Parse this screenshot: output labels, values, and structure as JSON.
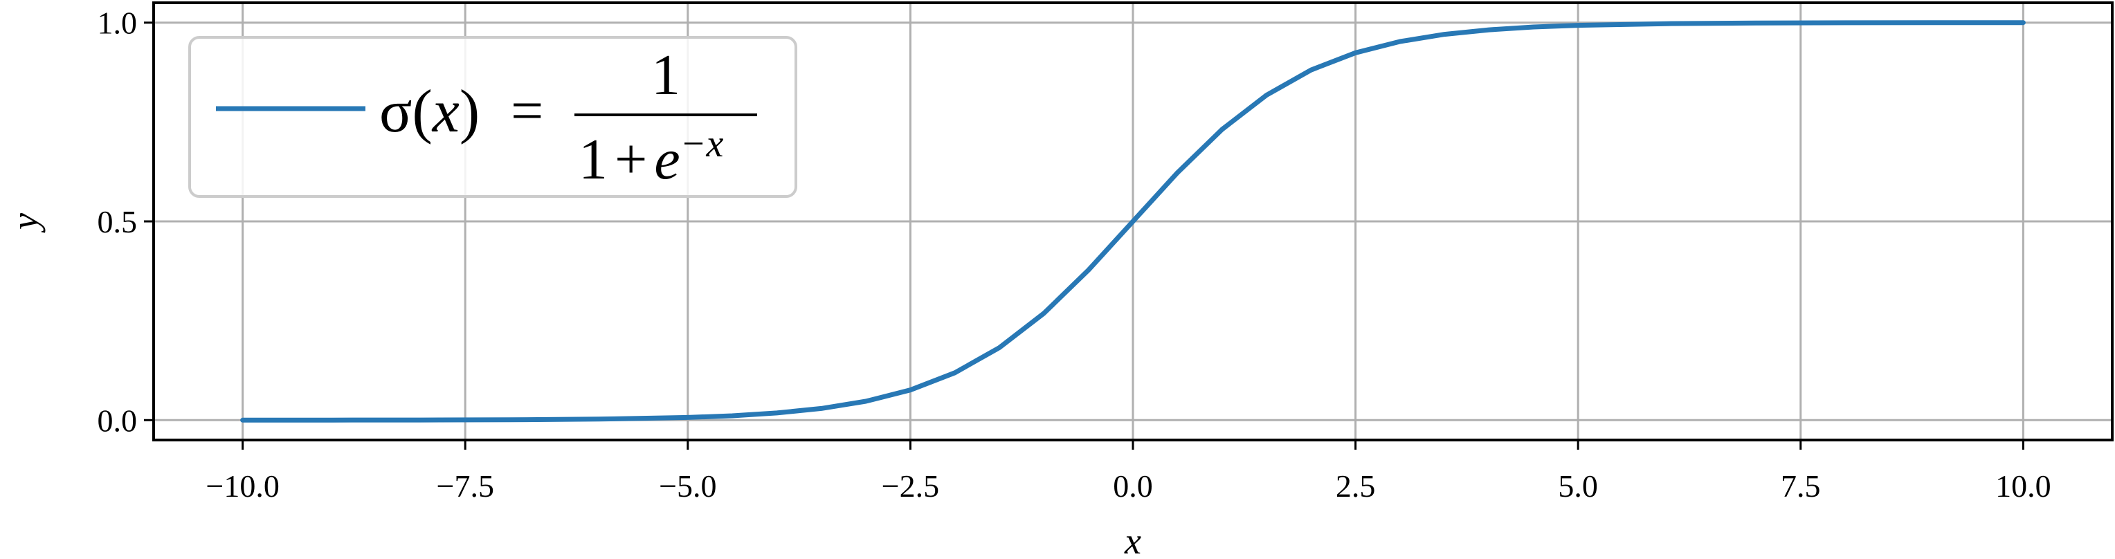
{
  "chart_data": {
    "type": "line",
    "title": "",
    "xlabel": "x",
    "ylabel": "y",
    "xlim": [
      -11.0,
      11.0
    ],
    "ylim": [
      -0.05,
      1.05
    ],
    "x_ticks": [
      -10.0,
      -7.5,
      -5.0,
      -2.5,
      0.0,
      2.5,
      5.0,
      7.5,
      10.0
    ],
    "x_tick_labels": [
      "−10.0",
      "−7.5",
      "−5.0",
      "−2.5",
      "0.0",
      "2.5",
      "5.0",
      "7.5",
      "10.0"
    ],
    "y_ticks": [
      0.0,
      0.5,
      1.0
    ],
    "y_tick_labels": [
      "0.0",
      "0.5",
      "1.0"
    ],
    "grid": true,
    "legend_position": "top-left",
    "colors": {
      "series": "#2878b5",
      "grid": "#b0b0b0",
      "axes": "#000000",
      "legend_border": "#cccccc"
    },
    "legend": {
      "lhs_sigma": "σ",
      "lhs_open": "(",
      "lhs_var": "x",
      "lhs_close": ")",
      "equals": "=",
      "numerator": "1",
      "den_one": "1",
      "den_plus": "+",
      "den_e": "e",
      "den_exp": "−x"
    },
    "series": [
      {
        "name": "σ(x) = 1/(1+e^(−x))",
        "x": [
          -10.0,
          -9.0,
          -8.0,
          -7.0,
          -6.0,
          -5.0,
          -4.5,
          -4.0,
          -3.5,
          -3.0,
          -2.5,
          -2.0,
          -1.5,
          -1.0,
          -0.5,
          0.0,
          0.5,
          1.0,
          1.5,
          2.0,
          2.5,
          3.0,
          3.5,
          4.0,
          4.5,
          5.0,
          6.0,
          7.0,
          8.0,
          9.0,
          10.0
        ],
        "y": [
          0.0,
          0.0001,
          0.0003,
          0.0009,
          0.0025,
          0.0067,
          0.011,
          0.018,
          0.0293,
          0.0474,
          0.0759,
          0.1192,
          0.1824,
          0.2689,
          0.3775,
          0.5,
          0.6225,
          0.7311,
          0.8176,
          0.8808,
          0.9241,
          0.9526,
          0.9707,
          0.982,
          0.989,
          0.9933,
          0.9975,
          0.9991,
          0.9997,
          0.9999,
          1.0
        ]
      }
    ]
  }
}
